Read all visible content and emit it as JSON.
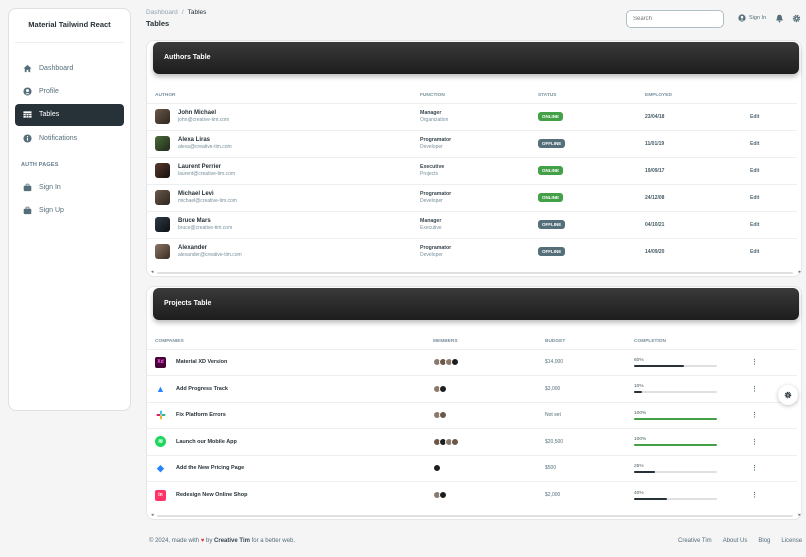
{
  "sidebar": {
    "brand": "Material Tailwind React",
    "items": [
      {
        "label": "Dashboard",
        "icon": "home-icon"
      },
      {
        "label": "Profile",
        "icon": "user-circle-icon"
      },
      {
        "label": "Tables",
        "icon": "table-icon",
        "active": true
      },
      {
        "label": "Notifications",
        "icon": "info-icon"
      }
    ],
    "auth_title": "AUTH PAGES",
    "auth_items": [
      {
        "label": "Sign In",
        "icon": "briefcase-icon"
      },
      {
        "label": "Sign Up",
        "icon": "briefcase-icon"
      }
    ]
  },
  "header": {
    "breadcrumb": [
      "Dashboard",
      "Tables"
    ],
    "separator": "/",
    "title": "Tables",
    "search_placeholder": "Search",
    "sign_in": "Sign In"
  },
  "authors": {
    "title": "Authors Table",
    "columns": [
      "AUTHOR",
      "FUNCTION",
      "STATUS",
      "EMPLOYED",
      ""
    ],
    "rows": [
      {
        "name": "John Michael",
        "email": "john@creative-tim.com",
        "job": "Manager",
        "org": "Organization",
        "status": "ONLINE",
        "online": true,
        "date": "23/04/18",
        "action": "Edit"
      },
      {
        "name": "Alexa Liras",
        "email": "alexa@creative-tim.com",
        "job": "Programator",
        "org": "Developer",
        "status": "OFFLINE",
        "online": false,
        "date": "11/01/19",
        "action": "Edit"
      },
      {
        "name": "Laurent Perrier",
        "email": "laurent@creative-tim.com",
        "job": "Executive",
        "org": "Projects",
        "status": "ONLINE",
        "online": true,
        "date": "19/09/17",
        "action": "Edit"
      },
      {
        "name": "Michael Levi",
        "email": "michael@creative-tim.com",
        "job": "Programator",
        "org": "Developer",
        "status": "ONLINE",
        "online": true,
        "date": "24/12/08",
        "action": "Edit"
      },
      {
        "name": "Bruce Mars",
        "email": "bruce@creative-tim.com",
        "job": "Manager",
        "org": "Executive",
        "status": "OFFLINE",
        "online": false,
        "date": "04/10/21",
        "action": "Edit"
      },
      {
        "name": "Alexander",
        "email": "alexander@creative-tim.com",
        "job": "Programator",
        "org": "Developer",
        "status": "OFFLINE",
        "online": false,
        "date": "14/09/20",
        "action": "Edit"
      }
    ]
  },
  "projects": {
    "title": "Projects Table",
    "columns": [
      "COMPANIES",
      "MEMBERS",
      "BUDGET",
      "COMPLETION",
      ""
    ],
    "rows": [
      {
        "name": "Material XD Version",
        "logo": "xd-logo-icon",
        "members": 4,
        "budget": "$14,000",
        "completion": 60
      },
      {
        "name": "Add Progress Track",
        "logo": "atlassian-logo-icon",
        "members": 2,
        "budget": "$3,000",
        "completion": 10
      },
      {
        "name": "Fix Platform Errors",
        "logo": "slack-logo-icon",
        "members": 2,
        "budget": "Not set",
        "completion": 100
      },
      {
        "name": "Launch our Mobile App",
        "logo": "spotify-logo-icon",
        "members": 4,
        "budget": "$20,500",
        "completion": 100
      },
      {
        "name": "Add the New Pricing Page",
        "logo": "jira-logo-icon",
        "members": 1,
        "budget": "$500",
        "completion": 25
      },
      {
        "name": "Redesign New Online Shop",
        "logo": "invision-logo-icon",
        "members": 2,
        "budget": "$2,000",
        "completion": 40
      }
    ]
  },
  "footer": {
    "text_before": "© 2024, made with",
    "text_by": "by",
    "author": "Creative Tim",
    "text_after": "for a better web.",
    "links": [
      "Creative Tim",
      "About Us",
      "Blog",
      "License"
    ]
  },
  "colors": {
    "online": "#43a047",
    "offline": "#546e7a",
    "dark": "#263238"
  }
}
